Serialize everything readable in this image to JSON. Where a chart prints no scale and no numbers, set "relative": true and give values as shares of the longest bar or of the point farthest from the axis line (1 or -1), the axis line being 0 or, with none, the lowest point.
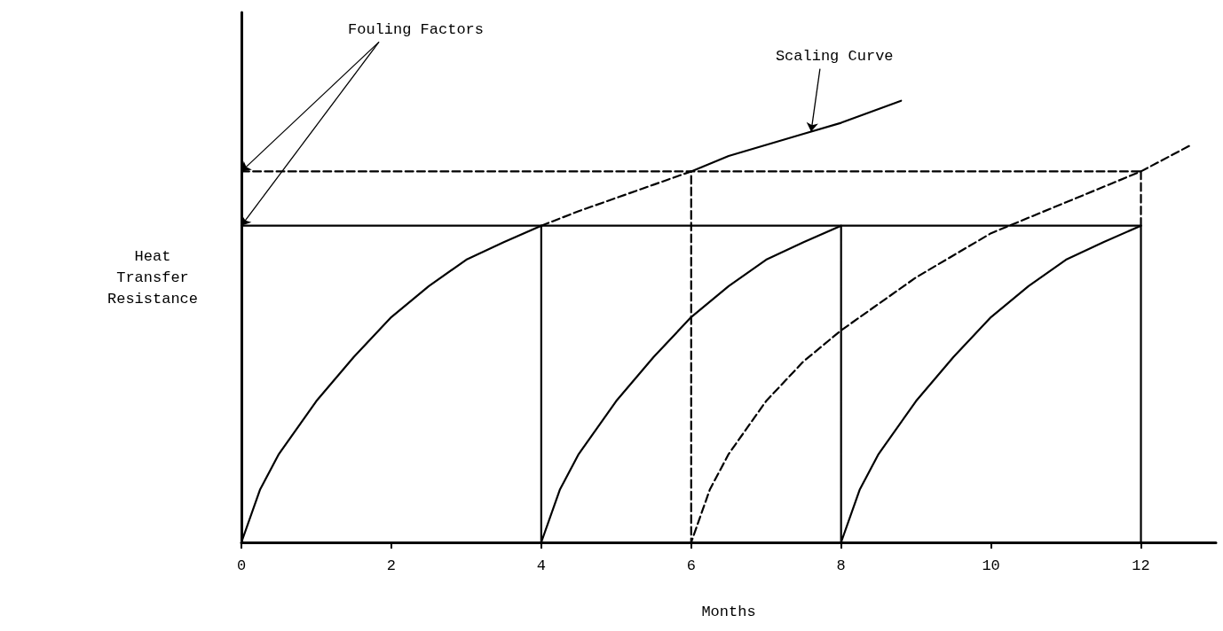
{
  "chart_data": {
    "type": "line",
    "relative": true,
    "xlabel": "Months",
    "ylabel": "Heat Transfer Resistance",
    "xlim": [
      0,
      13
    ],
    "xticks": [
      0,
      2,
      4,
      6,
      8,
      10,
      12
    ],
    "grid": false,
    "marker": "none",
    "annotations": [
      {
        "text": "Fouling Factors",
        "x": 0,
        "y": 0.84
      },
      {
        "text": "Scaling Curve",
        "x": 7.6,
        "y": 0.93
      }
    ],
    "series": [
      {
        "color": "#000000",
        "line_style": "solid",
        "x": [
          0,
          0.25,
          0.5,
          1,
          1.5,
          2,
          2.5,
          3,
          3.5,
          4,
          4,
          4.25,
          4.5,
          5,
          5.5,
          6,
          6.5,
          7,
          7.5,
          8,
          8,
          8.25,
          8.5,
          9,
          9.5,
          10,
          10.5,
          11,
          11.5,
          12,
          12
        ],
        "values": [
          0,
          0.12,
          0.2,
          0.32,
          0.42,
          0.51,
          0.58,
          0.64,
          0.68,
          0.717,
          0,
          0.12,
          0.2,
          0.32,
          0.42,
          0.51,
          0.58,
          0.64,
          0.68,
          0.717,
          0,
          0.12,
          0.2,
          0.32,
          0.42,
          0.51,
          0.58,
          0.64,
          0.68,
          0.717,
          0
        ]
      },
      {
        "color": "#000000",
        "line_style": "solid",
        "x": [
          0,
          12
        ],
        "values": [
          0.717,
          0.717
        ]
      },
      {
        "color": "#000000",
        "line_style": "dashed",
        "x": [
          0,
          12
        ],
        "values": [
          0.84,
          0.84
        ]
      },
      {
        "color": "#000000",
        "line_style": "dashed",
        "x": [
          4,
          4.5,
          5,
          5.5,
          6,
          6,
          6.25,
          6.5,
          7,
          7.5,
          8,
          9,
          10,
          11,
          12,
          12.67
        ],
        "values": [
          0.717,
          0.75,
          0.78,
          0.81,
          0.84,
          0,
          0.12,
          0.2,
          0.32,
          0.41,
          0.48,
          0.6,
          0.7,
          0.77,
          0.84,
          0.9
        ]
      },
      {
        "color": "#000000",
        "line_style": "dashed",
        "x": [
          12,
          12
        ],
        "values": [
          0.84,
          0.717
        ]
      },
      {
        "color": "#000000",
        "line_style": "solid",
        "x": [
          6,
          6.5,
          7,
          7.5,
          8,
          8.8
        ],
        "values": [
          0.84,
          0.875,
          0.9,
          0.925,
          0.95,
          1
        ]
      }
    ]
  }
}
